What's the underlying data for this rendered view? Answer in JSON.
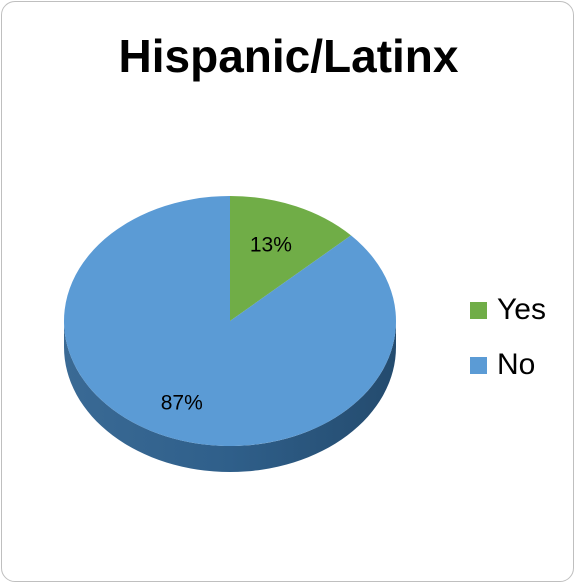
{
  "chart_data": {
    "type": "pie",
    "title": "Hispanic/Latinx",
    "categories": [
      "Yes",
      "No"
    ],
    "values": [
      13,
      87
    ],
    "data_labels": [
      "13%",
      "87%"
    ],
    "colors": [
      "#70ad47",
      "#5b9bd5"
    ],
    "legend_position": "right",
    "style": "3d"
  }
}
